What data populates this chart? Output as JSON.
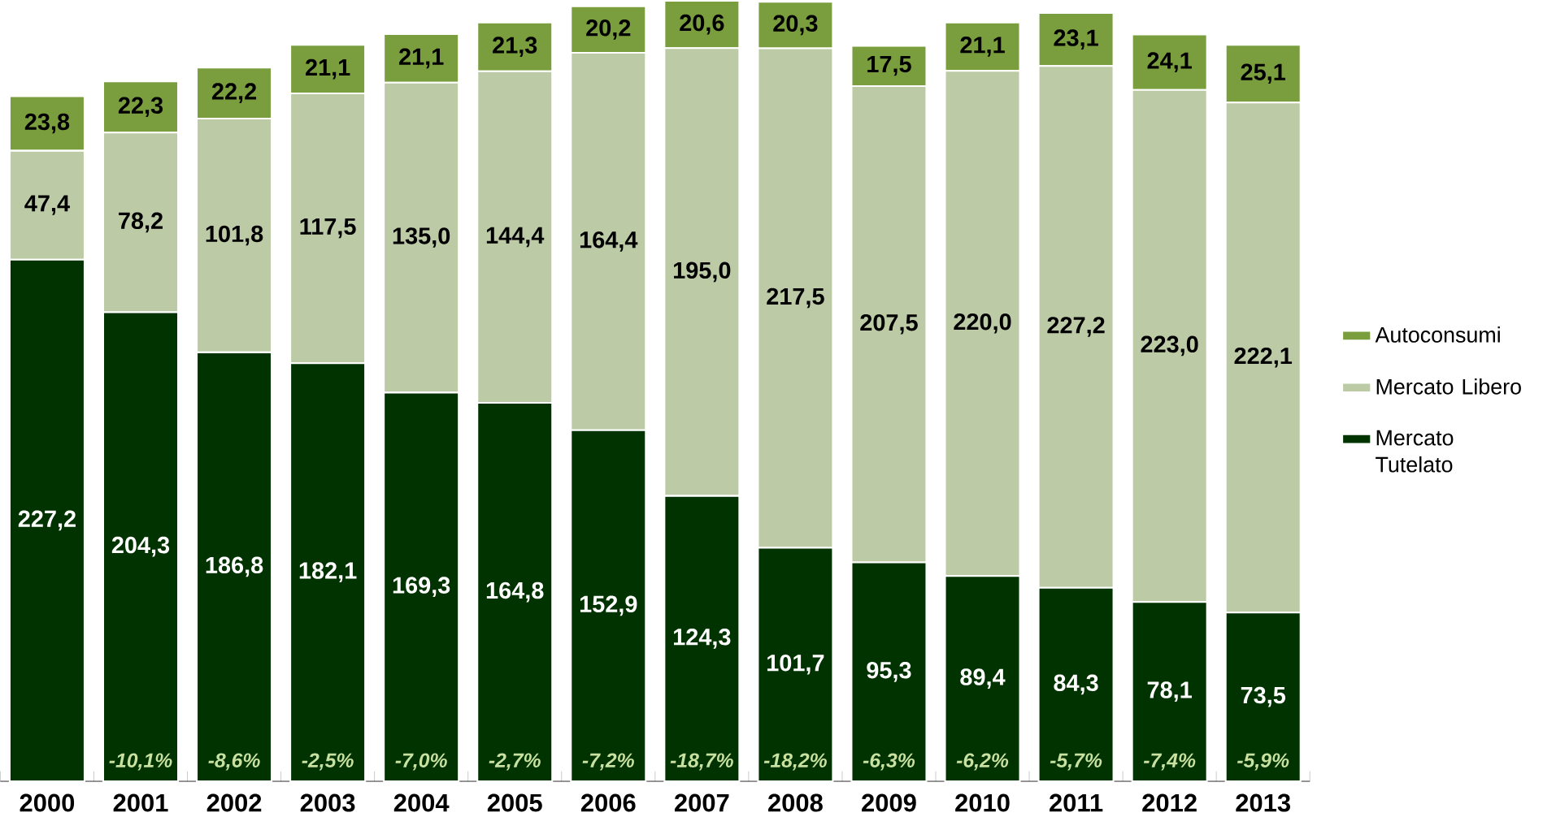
{
  "chart_data": {
    "type": "bar",
    "stacked": true,
    "legend": "right",
    "categories": [
      "2000",
      "2001",
      "2002",
      "2003",
      "2004",
      "2005",
      "2006",
      "2007",
      "2008",
      "2009",
      "2010",
      "2011",
      "2012",
      "2013"
    ],
    "series": [
      {
        "name": "Mercato Tutelato",
        "color": "#003300",
        "values": [
          227.2,
          204.3,
          186.8,
          182.1,
          169.3,
          164.8,
          152.9,
          124.3,
          101.7,
          95.3,
          89.4,
          84.3,
          78.1,
          73.5
        ],
        "value_labels": [
          "227,2",
          "204,3",
          "186,8",
          "182,1",
          "169,3",
          "164,8",
          "152,9",
          "124,3",
          "101,7",
          "95,3",
          "89,4",
          "84,3",
          "78,1",
          "73,5"
        ]
      },
      {
        "name": "Mercato Libero",
        "color": "#bccba6",
        "values": [
          47.4,
          78.2,
          101.8,
          117.5,
          135.0,
          144.4,
          164.4,
          195.0,
          217.5,
          207.5,
          220.0,
          227.2,
          223.0,
          222.1
        ],
        "value_labels": [
          "47,4",
          "78,2",
          "101,8",
          "117,5",
          "135,0",
          "144,4",
          "164,4",
          "195,0",
          "217,5",
          "207,5",
          "220,0",
          "227,2",
          "223,0",
          "222,1"
        ]
      },
      {
        "name": "Autoconsumi",
        "color": "#7a9e3e",
        "values": [
          23.8,
          22.3,
          22.2,
          21.1,
          21.1,
          21.3,
          20.2,
          20.6,
          20.3,
          17.5,
          21.1,
          23.1,
          24.1,
          25.1
        ],
        "value_labels": [
          "23,8",
          "22,3",
          "22,2",
          "21,1",
          "21,1",
          "21,3",
          "20,2",
          "20,6",
          "20,3",
          "17,5",
          "21,1",
          "23,1",
          "24,1",
          "25,1"
        ]
      }
    ],
    "annotations": [
      "-10,1%",
      "-8,6%",
      "-2,5%",
      "-7,0%",
      "-2,7%",
      "-7,2%",
      "-18,7%",
      "-18,2%",
      "-6,3%",
      "-6,2%",
      "-5,7%",
      "-7,4%",
      "-5,9%"
    ]
  }
}
